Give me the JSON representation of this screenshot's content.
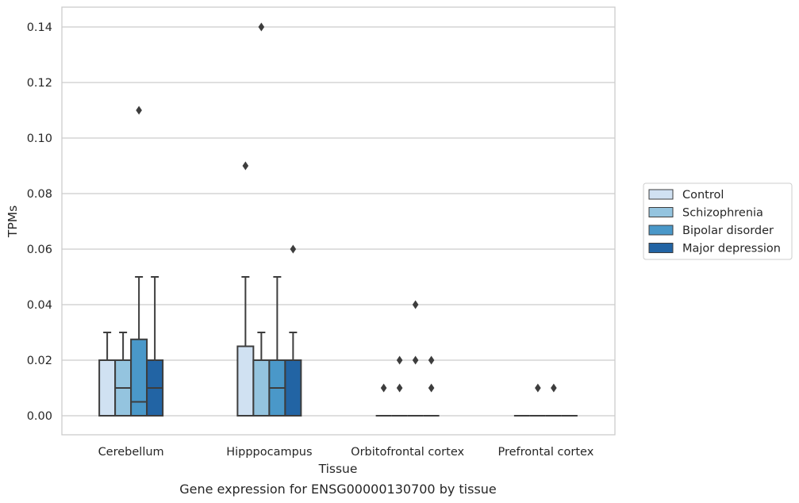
{
  "chart_data": {
    "type": "box",
    "title": "",
    "caption": "Gene expression for ENSG00000130700 by tissue",
    "xlabel": "Tissue",
    "ylabel": "TPMs",
    "ylim": [
      -0.007,
      0.147
    ],
    "yticks": [
      0.0,
      0.02,
      0.04,
      0.06,
      0.08,
      0.1,
      0.12,
      0.14
    ],
    "ytick_labels": [
      "0.00",
      "0.02",
      "0.04",
      "0.06",
      "0.08",
      "0.10",
      "0.12",
      "0.14"
    ],
    "grid": "horizontal",
    "legend_position": "right",
    "categories": [
      "Cerebellum",
      "Hipppocampus",
      "Orbitofrontal cortex",
      "Prefrontal cortex"
    ],
    "series": [
      {
        "name": "Control",
        "color": "#d0e1f2"
      },
      {
        "name": "Schizophrenia",
        "color": "#94c4df"
      },
      {
        "name": "Bipolar disorder",
        "color": "#4a98c9"
      },
      {
        "name": "Major depression",
        "color": "#2264a4"
      }
    ],
    "boxes": [
      [
        {
          "q1": 0.0,
          "median": 0.0,
          "q3": 0.02,
          "whisker_low": 0.0,
          "whisker_high": 0.03,
          "outliers": []
        },
        {
          "q1": 0.0,
          "median": 0.01,
          "q3": 0.02,
          "whisker_low": 0.0,
          "whisker_high": 0.03,
          "outliers": []
        },
        {
          "q1": 0.0,
          "median": 0.005,
          "q3": 0.0275,
          "whisker_low": 0.0,
          "whisker_high": 0.05,
          "outliers": [
            0.11
          ]
        },
        {
          "q1": 0.0,
          "median": 0.01,
          "q3": 0.02,
          "whisker_low": 0.0,
          "whisker_high": 0.05,
          "outliers": []
        }
      ],
      [
        {
          "q1": 0.0,
          "median": 0.0,
          "q3": 0.025,
          "whisker_low": 0.0,
          "whisker_high": 0.05,
          "outliers": [
            0.09
          ]
        },
        {
          "q1": 0.0,
          "median": 0.0,
          "q3": 0.02,
          "whisker_low": 0.0,
          "whisker_high": 0.03,
          "outliers": [
            0.14
          ]
        },
        {
          "q1": 0.0,
          "median": 0.01,
          "q3": 0.02,
          "whisker_low": 0.0,
          "whisker_high": 0.05,
          "outliers": []
        },
        {
          "q1": 0.0,
          "median": 0.02,
          "q3": 0.02,
          "whisker_low": 0.0,
          "whisker_high": 0.03,
          "outliers": [
            0.06
          ]
        }
      ],
      [
        {
          "q1": 0.0,
          "median": 0.0,
          "q3": 0.0,
          "whisker_low": 0.0,
          "whisker_high": 0.0,
          "outliers": [
            0.01
          ]
        },
        {
          "q1": 0.0,
          "median": 0.0,
          "q3": 0.0,
          "whisker_low": 0.0,
          "whisker_high": 0.0,
          "outliers": [
            0.01,
            0.02
          ]
        },
        {
          "q1": 0.0,
          "median": 0.0,
          "q3": 0.0,
          "whisker_low": 0.0,
          "whisker_high": 0.0,
          "outliers": [
            0.02,
            0.04
          ]
        },
        {
          "q1": 0.0,
          "median": 0.0,
          "q3": 0.0,
          "whisker_low": 0.0,
          "whisker_high": 0.0,
          "outliers": [
            0.01,
            0.02
          ]
        }
      ],
      [
        {
          "q1": 0.0,
          "median": 0.0,
          "q3": 0.0,
          "whisker_low": 0.0,
          "whisker_high": 0.0,
          "outliers": []
        },
        {
          "q1": 0.0,
          "median": 0.0,
          "q3": 0.0,
          "whisker_low": 0.0,
          "whisker_high": 0.0,
          "outliers": [
            0.01
          ]
        },
        {
          "q1": 0.0,
          "median": 0.0,
          "q3": 0.0,
          "whisker_low": 0.0,
          "whisker_high": 0.0,
          "outliers": [
            0.01
          ]
        },
        {
          "q1": 0.0,
          "median": 0.0,
          "q3": 0.0,
          "whisker_low": 0.0,
          "whisker_high": 0.0,
          "outliers": []
        }
      ]
    ]
  }
}
